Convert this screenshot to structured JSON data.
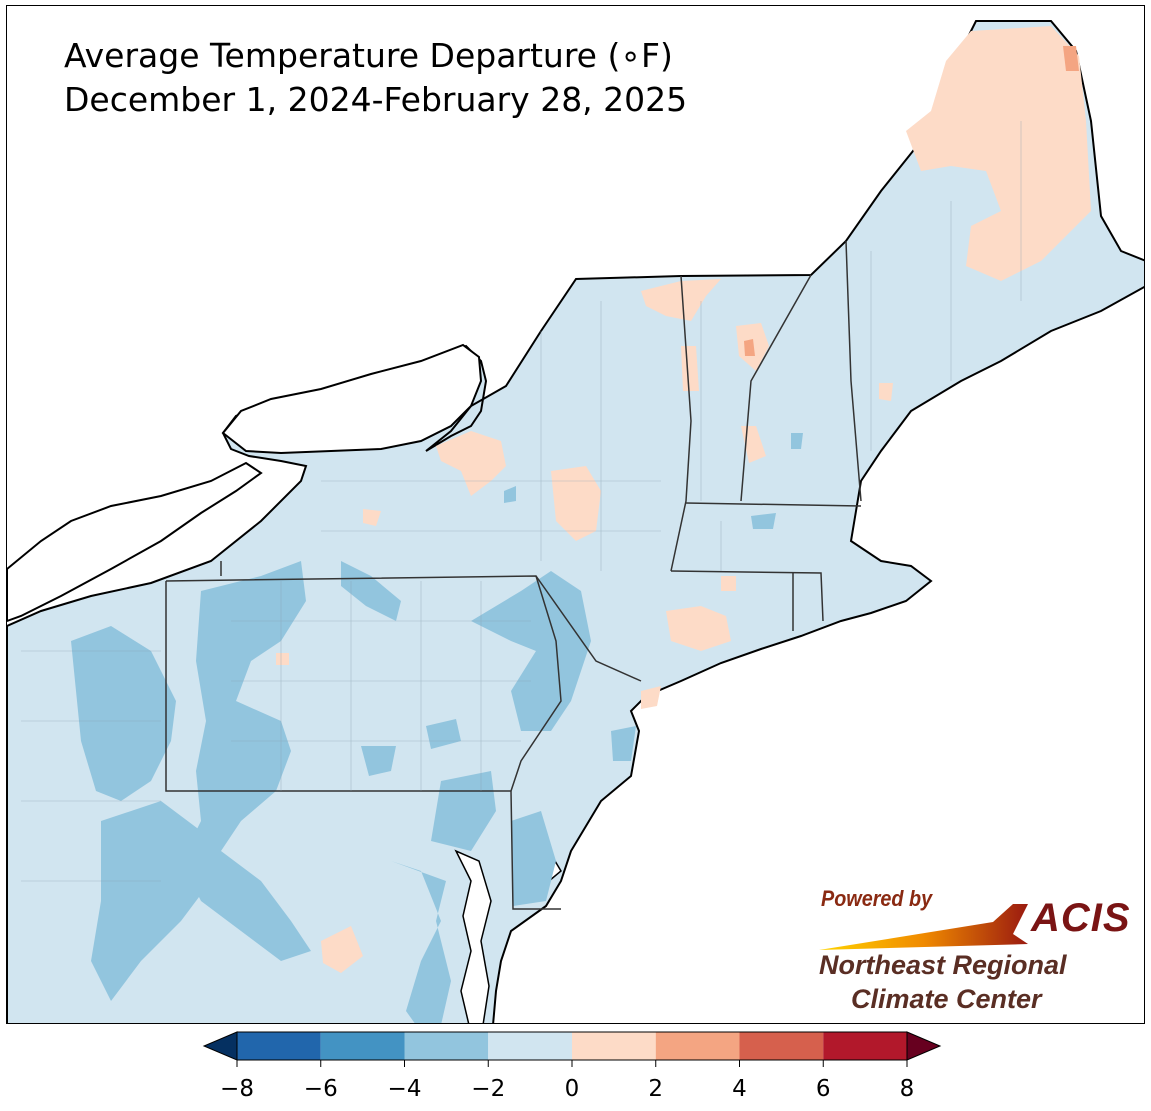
{
  "title": {
    "line1": "Average Temperature Departure (∘F)",
    "line2": "December 1, 2024-February 28, 2025"
  },
  "logo": {
    "powered_by": "Powered by",
    "acis": "ACIS",
    "org_line1": "Northeast Regional",
    "org_line2": "Climate Center"
  },
  "colorbar": {
    "ticks": [
      "−8",
      "−6",
      "−4",
      "−2",
      "0",
      "2",
      "4",
      "6",
      "8"
    ],
    "bins": [
      {
        "range": "-8 to -6",
        "color": "#2166ac"
      },
      {
        "range": "-6 to -4",
        "color": "#4393c3"
      },
      {
        "range": "-4 to -2",
        "color": "#92c5de"
      },
      {
        "range": "-2 to 0",
        "color": "#d1e5f0"
      },
      {
        "range": "0 to 2",
        "color": "#fddbc7"
      },
      {
        "range": "2 to 4",
        "color": "#f4a582"
      },
      {
        "range": "4 to 6",
        "color": "#d6604d"
      },
      {
        "range": "6 to 8",
        "color": "#b2182b"
      }
    ],
    "under_color": "#053061",
    "over_color": "#67001f"
  },
  "map_colors": {
    "background": "#ffffff",
    "water": "#ffffff",
    "dominant_fill": "#d1e5f0",
    "cold_patch": "#92c5de",
    "warm_patch": "#fddbc7",
    "hot_patch": "#f4a582"
  }
}
